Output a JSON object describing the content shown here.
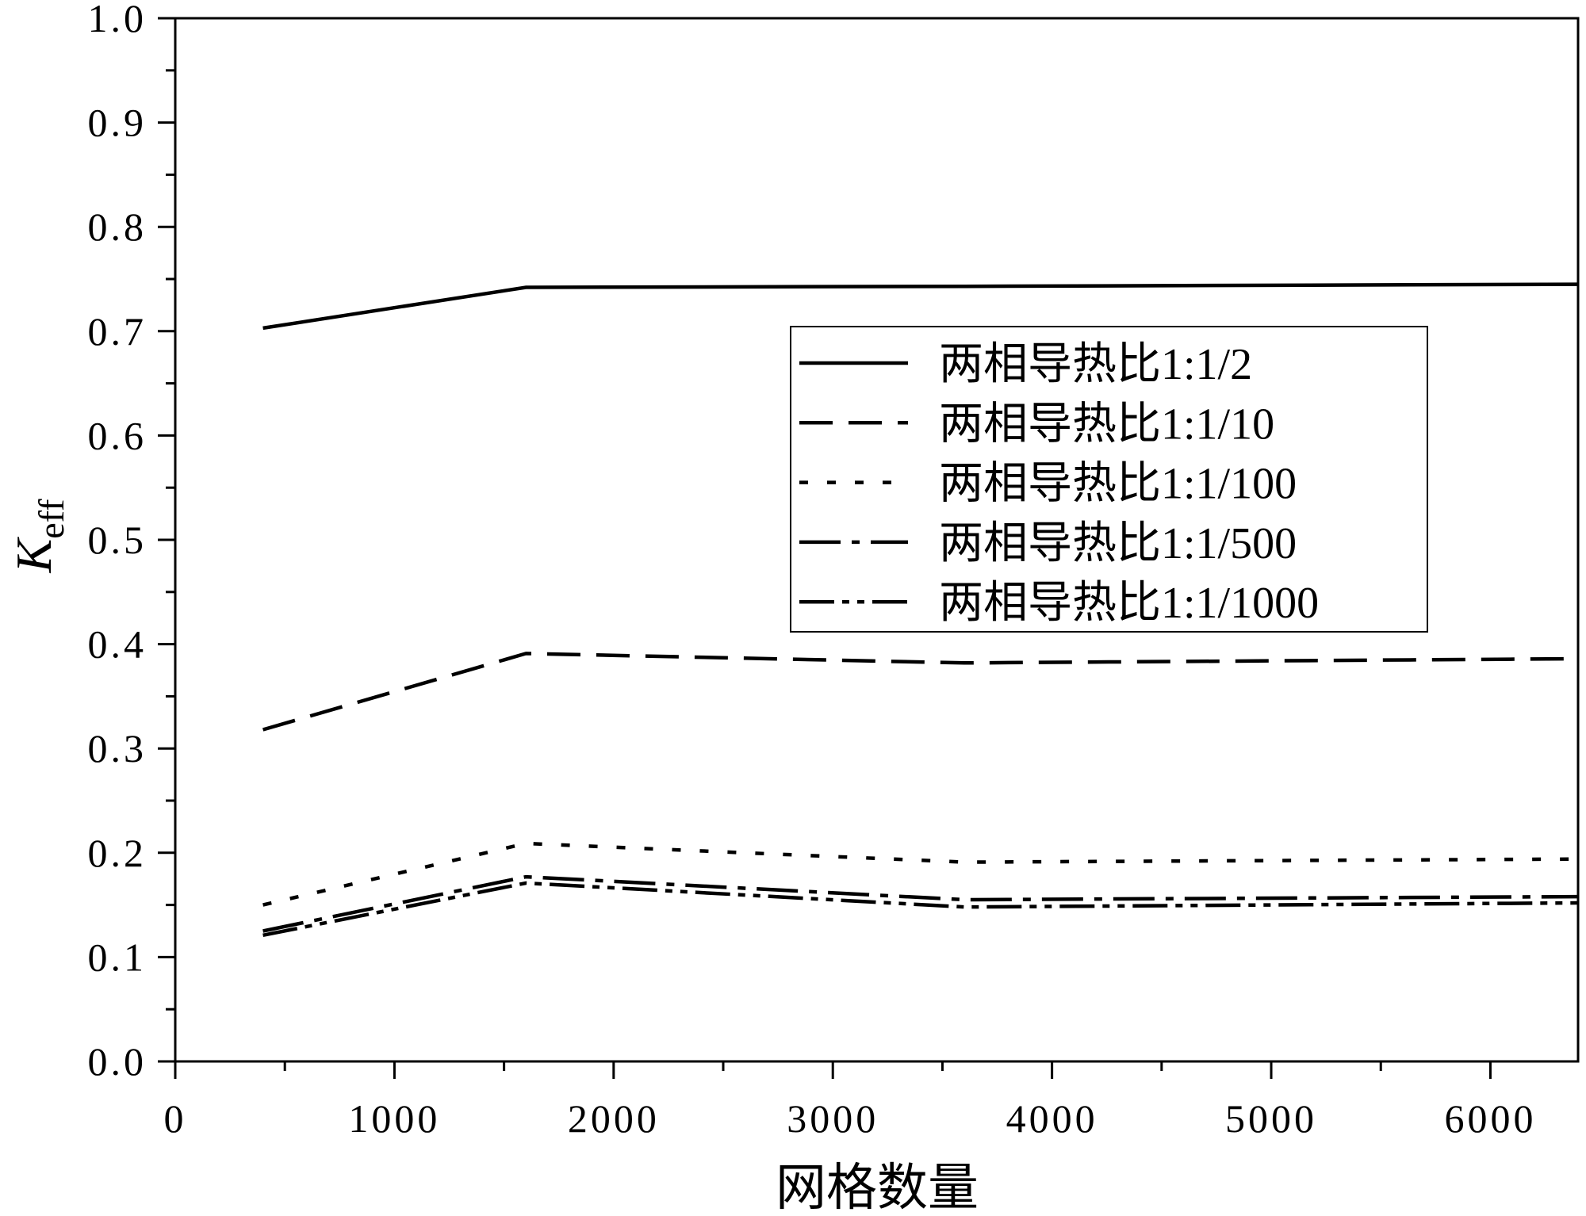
{
  "chart_data": {
    "type": "line",
    "xlabel": "网格数量",
    "ylabel": "K",
    "ylabel_subscript": "eff",
    "xlim": [
      0,
      6400
    ],
    "ylim": [
      0,
      1.0
    ],
    "x_ticks": [
      0,
      1000,
      2000,
      3000,
      4000,
      5000,
      6000
    ],
    "x_tick_labels": [
      "0",
      "1000",
      "2000",
      "3000",
      "4000",
      "5000",
      "6000"
    ],
    "x_minor_step": 500,
    "y_ticks": [
      0,
      0.1,
      0.2,
      0.3,
      0.4,
      0.5,
      0.6,
      0.7,
      0.8,
      0.9,
      1.0
    ],
    "y_tick_labels": [
      "0.0",
      "0.1",
      "0.2",
      "0.3",
      "0.4",
      "0.5",
      "0.6",
      "0.7",
      "0.8",
      "0.9",
      "1.0"
    ],
    "y_minor_step": 0.05,
    "grid": false,
    "legend": {
      "position": "right",
      "frame": true
    },
    "x": [
      400,
      1600,
      3600,
      6400
    ],
    "series": [
      {
        "name": "两相导热比1:1/2",
        "values": [
          0.703,
          0.742,
          0.743,
          0.745
        ],
        "line_style": "solid",
        "color": "#000000"
      },
      {
        "name": "两相导热比1:1/10",
        "values": [
          0.318,
          0.391,
          0.382,
          0.386
        ],
        "line_style": "dash",
        "color": "#000000"
      },
      {
        "name": "两相导热比1:1/100",
        "values": [
          0.15,
          0.209,
          0.191,
          0.194
        ],
        "line_style": "dot",
        "color": "#000000"
      },
      {
        "name": "两相导热比1:1/500",
        "values": [
          0.125,
          0.177,
          0.155,
          0.158
        ],
        "line_style": "dash-dot",
        "color": "#000000"
      },
      {
        "name": "两相导热比1:1/1000",
        "values": [
          0.121,
          0.171,
          0.148,
          0.152
        ],
        "line_style": "dash-dot-dot",
        "color": "#000000"
      }
    ]
  }
}
